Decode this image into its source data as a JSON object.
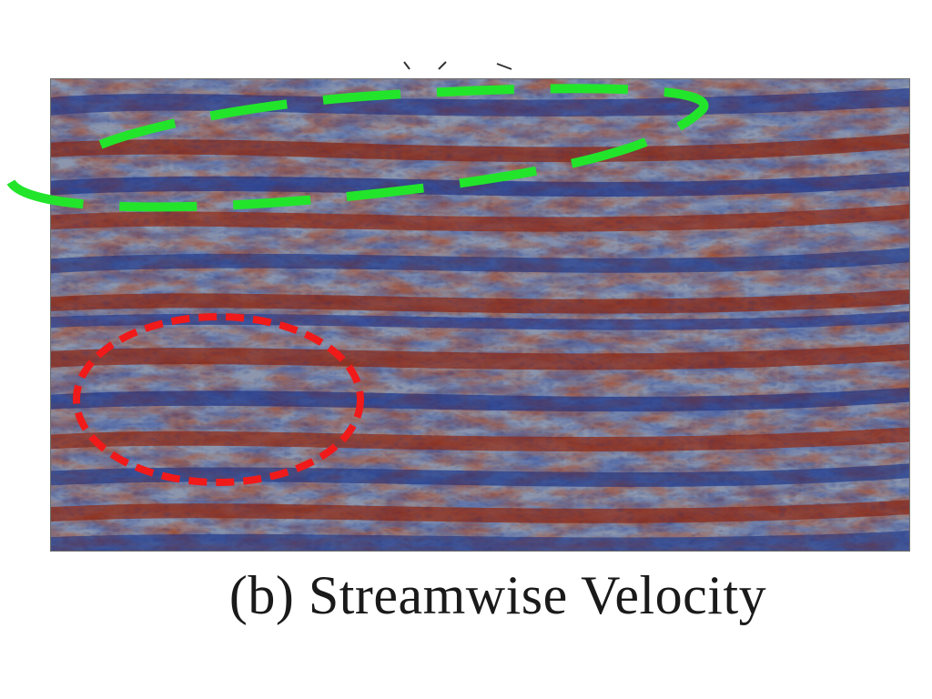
{
  "figure": {
    "caption": "(b) Streamwise Velocity",
    "colormap": {
      "low": "#1c2f7a",
      "mid_low": "#5a74b2",
      "neutral": "#8e98ad",
      "mid_high": "#b8694a",
      "high": "#8a1f14"
    },
    "annotations": [
      {
        "name": "green-dashed-ellipse",
        "color": "#22e52b",
        "style": "dashed",
        "region": "upper-left"
      },
      {
        "name": "red-dashed-ellipse",
        "color": "#f01a1a",
        "style": "dashed",
        "region": "lower-left"
      }
    ]
  }
}
